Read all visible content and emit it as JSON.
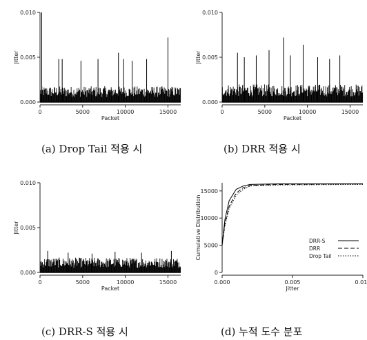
{
  "captions": [
    "(a) Drop Tail 적용 시",
    "(b) DRR 적용 시",
    "(c) DRR-S 적용 시",
    "(d) 누적 도수 분포"
  ],
  "chart_data": [
    {
      "type": "bar",
      "title": "",
      "xlabel": "Packet",
      "ylabel": "Jitter",
      "xlim": [
        0,
        16500
      ],
      "ylim": [
        0,
        0.01
      ],
      "x_ticks": [
        "0",
        "5000",
        "10000",
        "15000"
      ],
      "y_ticks": [
        "0.000",
        "0.005",
        "0.010"
      ],
      "x_tick_values": [
        0,
        5000,
        10000,
        15000
      ],
      "y_tick_values": [
        0,
        0.005,
        0.01
      ],
      "series": [
        {
          "band_level": 0.0016,
          "tall_spikes": [
            [
              200,
              0.01
            ],
            [
              2200,
              0.0048
            ],
            [
              2600,
              0.0048
            ],
            [
              4800,
              0.0046
            ],
            [
              6800,
              0.0048
            ],
            [
              9200,
              0.0055
            ],
            [
              9800,
              0.0048
            ],
            [
              10800,
              0.0046
            ],
            [
              12500,
              0.0048
            ],
            [
              15000,
              0.0072
            ]
          ]
        }
      ]
    },
    {
      "type": "bar",
      "title": "",
      "xlabel": "Packet",
      "ylabel": "Jitter",
      "xlim": [
        0,
        16500
      ],
      "ylim": [
        0,
        0.01
      ],
      "x_ticks": [
        "0",
        "5000",
        "10000",
        "15000"
      ],
      "y_ticks": [
        "0.000",
        "0.005",
        "0.010"
      ],
      "x_tick_values": [
        0,
        5000,
        10000,
        15000
      ],
      "y_tick_values": [
        0,
        0.005,
        0.01
      ],
      "series": [
        {
          "band_level": 0.0018,
          "tall_spikes": [
            [
              1800,
              0.0055
            ],
            [
              2600,
              0.005
            ],
            [
              4000,
              0.0052
            ],
            [
              5500,
              0.0058
            ],
            [
              7200,
              0.0072
            ],
            [
              8000,
              0.0052
            ],
            [
              9500,
              0.0064
            ],
            [
              11200,
              0.005
            ],
            [
              12600,
              0.0048
            ],
            [
              13800,
              0.0052
            ]
          ]
        }
      ]
    },
    {
      "type": "bar",
      "title": "",
      "xlabel": "Packet",
      "ylabel": "Jitter",
      "xlim": [
        0,
        16500
      ],
      "ylim": [
        0,
        0.01
      ],
      "x_ticks": [
        "0",
        "5000",
        "10000",
        "15000"
      ],
      "y_ticks": [
        "0.000",
        "0.005",
        "0.010"
      ],
      "x_tick_values": [
        0,
        5000,
        10000,
        15000
      ],
      "y_tick_values": [
        0,
        0.005,
        0.01
      ],
      "series": [
        {
          "band_level": 0.0015,
          "tall_spikes": [
            [
              900,
              0.0024
            ],
            [
              3300,
              0.0022
            ],
            [
              6100,
              0.0021
            ],
            [
              8800,
              0.0023
            ],
            [
              11900,
              0.0022
            ],
            [
              15400,
              0.0024
            ]
          ]
        }
      ]
    },
    {
      "type": "line",
      "title": "",
      "xlabel": "Jitter",
      "ylabel": "Cumulative Distribution",
      "xlim": [
        0,
        0.01
      ],
      "ylim": [
        0,
        16500
      ],
      "x_ticks": [
        "0.000",
        "0.005",
        "0.010"
      ],
      "y_ticks": [
        "0",
        "5000",
        "10000",
        "15000"
      ],
      "x_tick_values": [
        0,
        0.005,
        0.01
      ],
      "y_tick_values": [
        0,
        5000,
        10000,
        15000
      ],
      "legend": "bottom-right",
      "series": [
        {
          "name": "DRR-S",
          "style": "solid",
          "x": [
            0,
            0.0002,
            0.0005,
            0.001,
            0.0015,
            0.002,
            0.004,
            0.01
          ],
          "y": [
            5200,
            9800,
            13200,
            15300,
            15900,
            16200,
            16300,
            16300
          ]
        },
        {
          "name": "DRR",
          "style": "dashed",
          "x": [
            0,
            0.0002,
            0.0005,
            0.001,
            0.0015,
            0.002,
            0.004,
            0.01
          ],
          "y": [
            5000,
            9000,
            12200,
            14600,
            15600,
            16000,
            16200,
            16300
          ]
        },
        {
          "name": "Drop Tail",
          "style": "dotted",
          "x": [
            0,
            0.0002,
            0.0005,
            0.001,
            0.0015,
            0.002,
            0.004,
            0.01
          ],
          "y": [
            5000,
            8600,
            11800,
            14200,
            15300,
            15900,
            16100,
            16200
          ]
        }
      ]
    }
  ]
}
